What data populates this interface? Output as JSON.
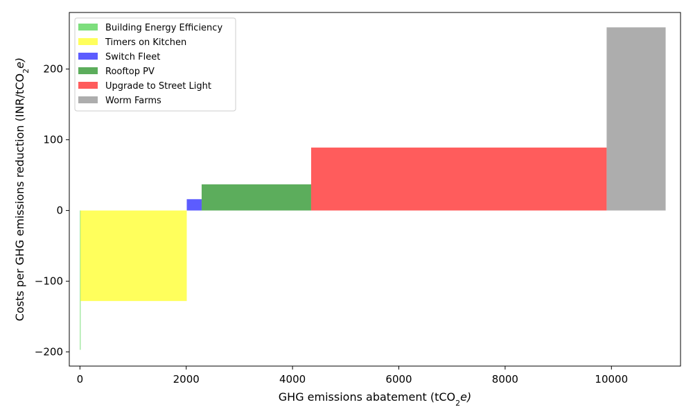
{
  "chart_data": {
    "type": "bar",
    "title": "",
    "xlabel": "GHG emissions abatement (tCO",
    "xlabel_sub": "2",
    "xlabel_end": "e)",
    "ylabel": "Costs per GHG emissions reduction (INR/tCO",
    "ylabel_sub": "2",
    "ylabel_end": "e)",
    "xlim": [
      -500,
      15500
    ],
    "ylim": [
      -220,
      280
    ],
    "xticks": [
      0,
      2000,
      4000,
      6000,
      8000,
      10000
    ],
    "xtick_labels": [
      "0",
      "2000",
      "4000",
      "6000",
      "8000",
      "10000"
    ],
    "yticks": [
      -200,
      -100,
      0,
      100,
      200
    ],
    "ytick_labels": [
      "−200",
      "−100",
      "0",
      "100",
      "200"
    ],
    "grid": false,
    "legend_position": "top-left",
    "series": [
      {
        "name": "Building Energy Efficiency",
        "x_start": 0,
        "width": 10,
        "value": -197,
        "color": "#5cd65c"
      },
      {
        "name": "Timers on Kitchen",
        "x_start": 10,
        "width": 2000,
        "value": -128,
        "color": "#ffff33"
      },
      {
        "name": "Switch Fleet",
        "x_start": 2010,
        "width": 280,
        "value": 16,
        "color": "#3333ff"
      },
      {
        "name": "Rooftop PV",
        "x_start": 2290,
        "width": 2060,
        "value": 37,
        "color": "#339933"
      },
      {
        "name": "Upgrade to Street Light",
        "x_start": 4350,
        "width": 5560,
        "value": 89,
        "color": "#ff3333"
      },
      {
        "name": "Worm Farms",
        "x_start": 9910,
        "width": 1110,
        "value": 259,
        "color": "#999999"
      }
    ]
  }
}
